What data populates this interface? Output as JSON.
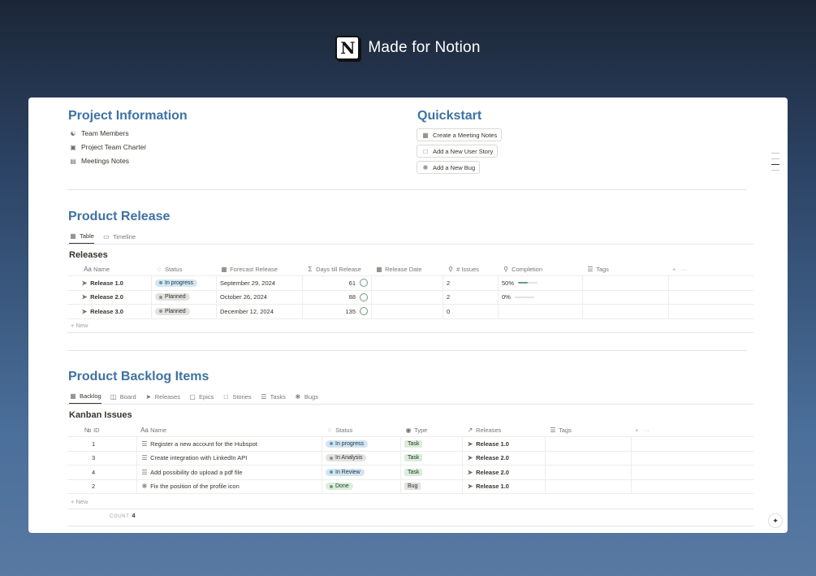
{
  "brand": {
    "logo_letter": "N",
    "title": "Made for Notion"
  },
  "project_info": {
    "title": "Project Information",
    "links": [
      {
        "icon": "team-icon",
        "label": "Team Members"
      },
      {
        "icon": "charter-icon",
        "label": "Project Team Charter"
      },
      {
        "icon": "notes-icon",
        "label": "Meetings Notes"
      }
    ]
  },
  "quickstart": {
    "title": "Quickstart",
    "buttons": [
      {
        "icon": "calendar-icon",
        "label": "Create a Meeting Notes"
      },
      {
        "icon": "document-icon",
        "label": "Add a New User Story"
      },
      {
        "icon": "bug-icon",
        "label": "Add a New Bug"
      }
    ]
  },
  "product_release": {
    "title": "Product Release",
    "tabs": [
      {
        "icon": "table-icon",
        "label": "Table",
        "active": true
      },
      {
        "icon": "timeline-icon",
        "label": "Timeline",
        "active": false
      }
    ],
    "db_title": "Releases",
    "columns": [
      "Name",
      "Status",
      "Forecast Release",
      "Days till Release",
      "Release Date",
      "# Issues",
      "Completion",
      "Tags"
    ],
    "rows": [
      {
        "name": "Release 1.0",
        "status": "In progress",
        "status_color": "blue",
        "forecast": "September 29, 2024",
        "days": "61",
        "release_date": "",
        "issues": "2",
        "completion": "50%",
        "completion_value": 0.5,
        "tags": ""
      },
      {
        "name": "Release 2.0",
        "status": "Planned",
        "status_color": "gray",
        "forecast": "October 26, 2024",
        "days": "88",
        "release_date": "",
        "issues": "2",
        "completion": "0%",
        "completion_value": 0,
        "tags": ""
      },
      {
        "name": "Release 3.0",
        "status": "Planned",
        "status_color": "gray",
        "forecast": "December 12, 2024",
        "days": "135",
        "release_date": "",
        "issues": "0",
        "completion": "",
        "completion_value": null,
        "tags": ""
      }
    ],
    "new_label": "+ New"
  },
  "backlog": {
    "title": "Product Backlog Items",
    "tabs": [
      {
        "icon": "table-icon",
        "label": "Backlog",
        "active": true
      },
      {
        "icon": "board-icon",
        "label": "Board",
        "active": false
      },
      {
        "icon": "rocket-icon",
        "label": "Releases",
        "active": false
      },
      {
        "icon": "epics-icon",
        "label": "Epics",
        "active": false
      },
      {
        "icon": "stories-icon",
        "label": "Stories",
        "active": false
      },
      {
        "icon": "tasks-icon",
        "label": "Tasks",
        "active": false
      },
      {
        "icon": "bug-icon",
        "label": "Bugs",
        "active": false
      }
    ],
    "db_title": "Kanban Issues",
    "columns": [
      "ID",
      "Name",
      "Status",
      "Type",
      "Releases",
      "Tags"
    ],
    "rows": [
      {
        "id": "1",
        "name": "Register a new account for the Hubspot",
        "status": "In progress",
        "status_color": "blue",
        "type": "Task",
        "release": "Release 1.0",
        "tags": ""
      },
      {
        "id": "3",
        "name": "Create integration with LinkedIn API",
        "status": "In Analysis",
        "status_color": "gray",
        "type": "Task",
        "release": "Release 2.0",
        "tags": ""
      },
      {
        "id": "4",
        "name": "Add possibility do upload a pdf file",
        "status": "In Review",
        "status_color": "blue",
        "type": "Task",
        "release": "Release 2.0",
        "tags": ""
      },
      {
        "id": "2",
        "name": "Fix the position of the profile icon",
        "status": "Done",
        "status_color": "green",
        "type": "Bug",
        "release": "Release 1.0",
        "tags": ""
      }
    ],
    "new_label": "+ New",
    "count_label": "COUNT",
    "count_value": "4"
  }
}
